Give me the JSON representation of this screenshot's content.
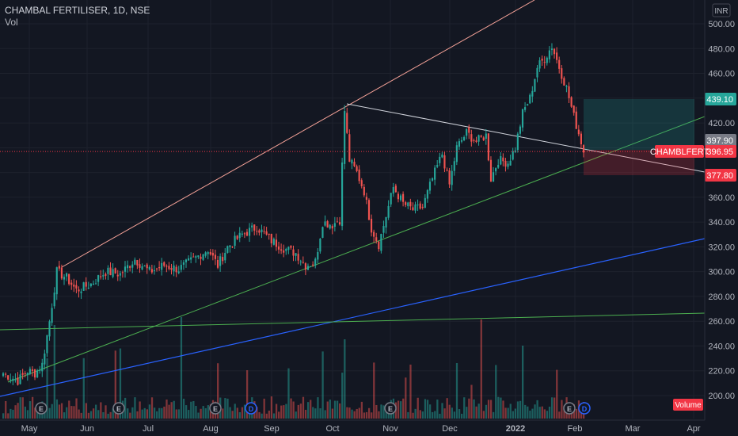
{
  "header": {
    "symbol_line": "CHAMBAL FERTILISER, 1D, NSE",
    "volume_label": "Vol"
  },
  "currency": "INR",
  "price_axis": {
    "ticks": [
      "500.00",
      "480.00",
      "460.00",
      "440.00",
      "420.00",
      "400.00",
      "380.00",
      "360.00",
      "340.00",
      "320.00",
      "300.00",
      "280.00",
      "260.00",
      "240.00",
      "220.00",
      "200.00"
    ],
    "min": 188,
    "max": 505
  },
  "time_axis": {
    "ticks": [
      "May",
      "Jun",
      "Jul",
      "Aug",
      "Sep",
      "Oct",
      "Nov",
      "Dec",
      "2022",
      "Feb",
      "Mar",
      "Apr"
    ]
  },
  "price_labels": {
    "target": {
      "value": "439.10",
      "color": "#26a69a"
    },
    "current": {
      "value": "397.90",
      "color": "#787b86"
    },
    "last": {
      "symbol": "CHAMBLFERT",
      "value": "396.95",
      "color": "#f23645"
    },
    "stop": {
      "value": "377.80",
      "color": "#f23645"
    }
  },
  "volume_badge": "Volume",
  "event_markers": [
    "E",
    "E",
    "E",
    "D",
    "E",
    "E",
    "D"
  ],
  "chart_data": {
    "type": "candlestick",
    "title": "CHAMBAL FERTILISER, 1D, NSE",
    "y_unit": "INR",
    "ylim": [
      188,
      505
    ],
    "x_ticks": [
      "May",
      "Jun",
      "Jul",
      "Aug",
      "Sep",
      "Oct",
      "Nov",
      "Dec",
      "2022",
      "Feb",
      "Mar",
      "Apr"
    ],
    "series_close_keypoints": [
      {
        "month": "May",
        "close": 218
      },
      {
        "month": "May",
        "close": 230
      },
      {
        "month": "May",
        "close": 300
      },
      {
        "month": "Jun",
        "close": 290
      },
      {
        "month": "Jun",
        "close": 300
      },
      {
        "month": "Jul",
        "close": 305
      },
      {
        "month": "Aug",
        "close": 320
      },
      {
        "month": "Aug",
        "close": 335
      },
      {
        "month": "Sep",
        "close": 315
      },
      {
        "month": "Sep",
        "close": 305
      },
      {
        "month": "Oct",
        "close": 342
      },
      {
        "month": "Oct",
        "close": 430
      },
      {
        "month": "Oct",
        "close": 380
      },
      {
        "month": "Nov",
        "close": 325
      },
      {
        "month": "Nov",
        "close": 365
      },
      {
        "month": "Nov",
        "close": 350
      },
      {
        "month": "Dec",
        "close": 395
      },
      {
        "month": "Dec",
        "close": 410
      },
      {
        "month": "Dec",
        "close": 375
      },
      {
        "month": "Dec",
        "close": 392
      },
      {
        "month": "2022",
        "close": 430
      },
      {
        "month": "2022",
        "close": 480
      },
      {
        "month": "2022",
        "close": 460
      },
      {
        "month": "Feb",
        "close": 397
      }
    ],
    "grid": true
  }
}
